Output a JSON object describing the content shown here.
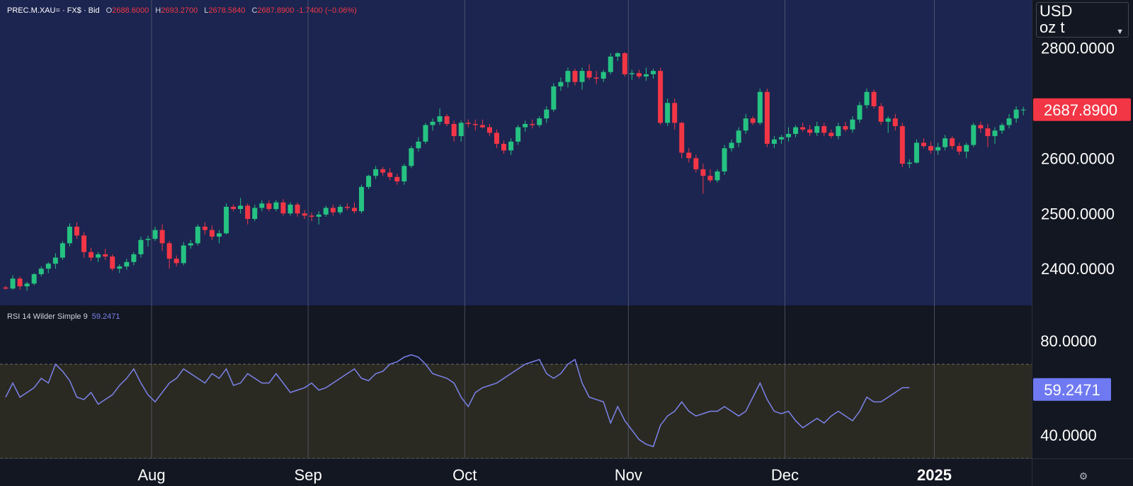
{
  "legend": {
    "symbol": "PREC.M.XAU=",
    "sep1": "·",
    "feed": "FX$",
    "sep2": "·",
    "price_type": "Bid",
    "o_label": "O",
    "o_value": "2688.6000",
    "h_label": "H",
    "h_value": "2693.2700",
    "l_label": "L",
    "l_value": "2678.5840",
    "c_label": "C",
    "c_value": "2687.8900",
    "change": "-1.7400",
    "change_pct": "(−0.06%)"
  },
  "units": {
    "currency": "USD",
    "weight": "oz t"
  },
  "icons": {
    "chevron": "chevron-down-icon",
    "settings": "settings-icon"
  },
  "rsi_legend": {
    "label": "RSI 14 Wilder Simple 9",
    "value": "59.2471"
  },
  "colors": {
    "background": "#131722",
    "price_pane_bg": "#1c2550",
    "rsi_band_bg": "#2a2a22",
    "up": "#26c281",
    "down": "#f23645",
    "rsi_line": "#7b83eb",
    "last_price_label": "#f23645",
    "rsi_value_label": "#6e79f2"
  },
  "chart_data": {
    "type": "candlestick",
    "price_axis": {
      "ticks": [
        2800,
        2600,
        2500,
        2400
      ],
      "tick_labels": [
        "2800.0000",
        "2600.0000",
        "2500.0000",
        "2400.0000"
      ],
      "range": [
        2340,
        2880
      ],
      "last_price": 2687.89,
      "last_price_label": "2687.8900"
    },
    "rsi_axis": {
      "ticks": [
        80,
        40
      ],
      "tick_labels": [
        "80.0000",
        "40.0000"
      ],
      "range": [
        30,
        95
      ],
      "band": [
        70,
        30
      ],
      "last_value": 59.2471,
      "last_value_label": "59.2471"
    },
    "x_axis": {
      "labels": [
        "Aug",
        "Sep",
        "Oct",
        "Nov",
        "Dec",
        "2025"
      ],
      "label_bar_index": [
        21,
        43,
        65,
        88,
        110,
        131
      ]
    },
    "ohlc": [
      [
        2366,
        2369,
        2362,
        2364
      ],
      [
        2364,
        2388,
        2362,
        2382
      ],
      [
        2382,
        2386,
        2362,
        2368
      ],
      [
        2368,
        2376,
        2360,
        2373
      ],
      [
        2373,
        2392,
        2370,
        2390
      ],
      [
        2390,
        2404,
        2386,
        2400
      ],
      [
        2400,
        2412,
        2392,
        2409
      ],
      [
        2409,
        2428,
        2400,
        2420
      ],
      [
        2420,
        2450,
        2416,
        2446
      ],
      [
        2446,
        2482,
        2440,
        2476
      ],
      [
        2476,
        2484,
        2454,
        2460
      ],
      [
        2460,
        2466,
        2420,
        2430
      ],
      [
        2430,
        2438,
        2414,
        2420
      ],
      [
        2420,
        2430,
        2412,
        2426
      ],
      [
        2426,
        2436,
        2416,
        2422
      ],
      [
        2422,
        2426,
        2396,
        2400
      ],
      [
        2400,
        2408,
        2392,
        2404
      ],
      [
        2404,
        2418,
        2398,
        2412
      ],
      [
        2412,
        2430,
        2406,
        2426
      ],
      [
        2426,
        2458,
        2420,
        2452
      ],
      [
        2452,
        2460,
        2440,
        2454
      ],
      [
        2454,
        2476,
        2450,
        2470
      ],
      [
        2470,
        2480,
        2432,
        2446
      ],
      [
        2446,
        2450,
        2400,
        2418
      ],
      [
        2418,
        2424,
        2404,
        2410
      ],
      [
        2410,
        2448,
        2406,
        2442
      ],
      [
        2442,
        2452,
        2436,
        2446
      ],
      [
        2446,
        2480,
        2442,
        2476
      ],
      [
        2476,
        2484,
        2462,
        2470
      ],
      [
        2470,
        2478,
        2452,
        2458
      ],
      [
        2458,
        2470,
        2446,
        2464
      ],
      [
        2464,
        2518,
        2462,
        2512
      ],
      [
        2512,
        2516,
        2504,
        2508
      ],
      [
        2508,
        2528,
        2500,
        2514
      ],
      [
        2514,
        2518,
        2480,
        2490
      ],
      [
        2490,
        2516,
        2486,
        2510
      ],
      [
        2510,
        2524,
        2504,
        2518
      ],
      [
        2518,
        2524,
        2504,
        2508
      ],
      [
        2508,
        2524,
        2504,
        2520
      ],
      [
        2520,
        2526,
        2496,
        2500
      ],
      [
        2500,
        2520,
        2496,
        2516
      ],
      [
        2516,
        2520,
        2494,
        2500
      ],
      [
        2500,
        2506,
        2490,
        2496
      ],
      [
        2496,
        2502,
        2486,
        2494
      ],
      [
        2494,
        2504,
        2480,
        2498
      ],
      [
        2498,
        2514,
        2494,
        2510
      ],
      [
        2510,
        2516,
        2496,
        2502
      ],
      [
        2502,
        2516,
        2498,
        2512
      ],
      [
        2512,
        2518,
        2506,
        2510
      ],
      [
        2510,
        2520,
        2500,
        2504
      ],
      [
        2504,
        2552,
        2500,
        2548
      ],
      [
        2548,
        2570,
        2544,
        2568
      ],
      [
        2568,
        2586,
        2562,
        2580
      ],
      [
        2580,
        2584,
        2568,
        2574
      ],
      [
        2574,
        2582,
        2560,
        2566
      ],
      [
        2566,
        2572,
        2552,
        2558
      ],
      [
        2558,
        2590,
        2552,
        2586
      ],
      [
        2586,
        2622,
        2582,
        2618
      ],
      [
        2618,
        2638,
        2612,
        2630
      ],
      [
        2630,
        2664,
        2626,
        2660
      ],
      [
        2660,
        2672,
        2650,
        2666
      ],
      [
        2666,
        2690,
        2660,
        2676
      ],
      [
        2676,
        2680,
        2658,
        2662
      ],
      [
        2662,
        2668,
        2630,
        2640
      ],
      [
        2640,
        2668,
        2630,
        2664
      ],
      [
        2664,
        2670,
        2656,
        2662
      ],
      [
        2662,
        2670,
        2650,
        2660
      ],
      [
        2660,
        2670,
        2654,
        2656
      ],
      [
        2656,
        2662,
        2640,
        2646
      ],
      [
        2646,
        2652,
        2618,
        2626
      ],
      [
        2626,
        2632,
        2608,
        2614
      ],
      [
        2614,
        2636,
        2606,
        2630
      ],
      [
        2630,
        2660,
        2624,
        2656
      ],
      [
        2656,
        2668,
        2648,
        2662
      ],
      [
        2662,
        2670,
        2654,
        2660
      ],
      [
        2660,
        2676,
        2656,
        2672
      ],
      [
        2672,
        2694,
        2664,
        2688
      ],
      [
        2688,
        2736,
        2684,
        2730
      ],
      [
        2730,
        2746,
        2722,
        2738
      ],
      [
        2738,
        2764,
        2728,
        2758
      ],
      [
        2758,
        2762,
        2732,
        2738
      ],
      [
        2738,
        2764,
        2724,
        2758
      ],
      [
        2758,
        2770,
        2742,
        2746
      ],
      [
        2746,
        2758,
        2734,
        2744
      ],
      [
        2744,
        2760,
        2738,
        2756
      ],
      [
        2756,
        2790,
        2752,
        2784
      ],
      [
        2784,
        2792,
        2776,
        2790
      ],
      [
        2790,
        2792,
        2748,
        2752
      ],
      [
        2752,
        2760,
        2742,
        2754
      ],
      [
        2754,
        2760,
        2744,
        2748
      ],
      [
        2748,
        2764,
        2740,
        2752
      ],
      [
        2752,
        2762,
        2744,
        2758
      ],
      [
        2758,
        2764,
        2660,
        2664
      ],
      [
        2664,
        2708,
        2658,
        2700
      ],
      [
        2700,
        2708,
        2652,
        2664
      ],
      [
        2664,
        2666,
        2600,
        2610
      ],
      [
        2610,
        2618,
        2592,
        2600
      ],
      [
        2600,
        2606,
        2574,
        2580
      ],
      [
        2580,
        2590,
        2536,
        2568
      ],
      [
        2568,
        2580,
        2556,
        2560
      ],
      [
        2560,
        2580,
        2556,
        2576
      ],
      [
        2576,
        2624,
        2570,
        2618
      ],
      [
        2618,
        2634,
        2612,
        2628
      ],
      [
        2628,
        2656,
        2620,
        2650
      ],
      [
        2650,
        2680,
        2644,
        2672
      ],
      [
        2672,
        2676,
        2660,
        2664
      ],
      [
        2664,
        2726,
        2660,
        2720
      ],
      [
        2720,
        2726,
        2620,
        2626
      ],
      [
        2626,
        2640,
        2618,
        2634
      ],
      [
        2634,
        2642,
        2626,
        2638
      ],
      [
        2638,
        2656,
        2630,
        2644
      ],
      [
        2644,
        2660,
        2638,
        2656
      ],
      [
        2656,
        2664,
        2648,
        2652
      ],
      [
        2652,
        2660,
        2640,
        2646
      ],
      [
        2646,
        2666,
        2640,
        2658
      ],
      [
        2658,
        2664,
        2640,
        2646
      ],
      [
        2646,
        2652,
        2636,
        2640
      ],
      [
        2640,
        2664,
        2634,
        2658
      ],
      [
        2658,
        2666,
        2648,
        2652
      ],
      [
        2652,
        2676,
        2646,
        2670
      ],
      [
        2670,
        2702,
        2664,
        2696
      ],
      [
        2696,
        2726,
        2690,
        2720
      ],
      [
        2720,
        2724,
        2690,
        2694
      ],
      [
        2694,
        2700,
        2660,
        2666
      ],
      [
        2666,
        2676,
        2646,
        2672
      ],
      [
        2672,
        2680,
        2650,
        2658
      ],
      [
        2658,
        2664,
        2584,
        2590
      ],
      [
        2590,
        2598,
        2582,
        2592
      ],
      [
        2592,
        2634,
        2590,
        2628
      ],
      [
        2628,
        2636,
        2618,
        2622
      ],
      [
        2622,
        2630,
        2608,
        2614
      ],
      [
        2614,
        2628,
        2606,
        2620
      ],
      [
        2620,
        2642,
        2614,
        2636
      ],
      [
        2636,
        2640,
        2616,
        2622
      ],
      [
        2622,
        2628,
        2606,
        2612
      ],
      [
        2612,
        2628,
        2600,
        2624
      ],
      [
        2624,
        2664,
        2620,
        2660
      ],
      [
        2660,
        2666,
        2646,
        2654
      ],
      [
        2654,
        2662,
        2620,
        2640
      ],
      [
        2640,
        2656,
        2626,
        2650
      ],
      [
        2650,
        2664,
        2644,
        2660
      ],
      [
        2660,
        2680,
        2654,
        2672
      ],
      [
        2672,
        2694,
        2664,
        2688
      ],
      [
        2688,
        2693,
        2678,
        2688
      ]
    ],
    "rsi": [
      56,
      62,
      56,
      58,
      60,
      64,
      62,
      70,
      67,
      63,
      56,
      55,
      58,
      53,
      55,
      57,
      61,
      64,
      68,
      62,
      57,
      54,
      58,
      62,
      64,
      68,
      66,
      64,
      62,
      66,
      64,
      68,
      61,
      62,
      66,
      64,
      62,
      62,
      66,
      62,
      58,
      59,
      60,
      62,
      59,
      60,
      62,
      64,
      66,
      68,
      64,
      63,
      66,
      67,
      70,
      71,
      73,
      74,
      73,
      70,
      66,
      65,
      64,
      62,
      56,
      52,
      58,
      60,
      61,
      62,
      64,
      66,
      68,
      70,
      71,
      72,
      66,
      64,
      66,
      70,
      72,
      62,
      56,
      55,
      54,
      45,
      52,
      46,
      42,
      38,
      36,
      35,
      44,
      48,
      50,
      54,
      50,
      48,
      49,
      50,
      50,
      52,
      50,
      48,
      50,
      56,
      62,
      55,
      50,
      49,
      50,
      46,
      43,
      45,
      47,
      45,
      48,
      50,
      48,
      46,
      50,
      56,
      54,
      54,
      56,
      58,
      60,
      60
    ],
    "rsi_x_offset": 0
  }
}
